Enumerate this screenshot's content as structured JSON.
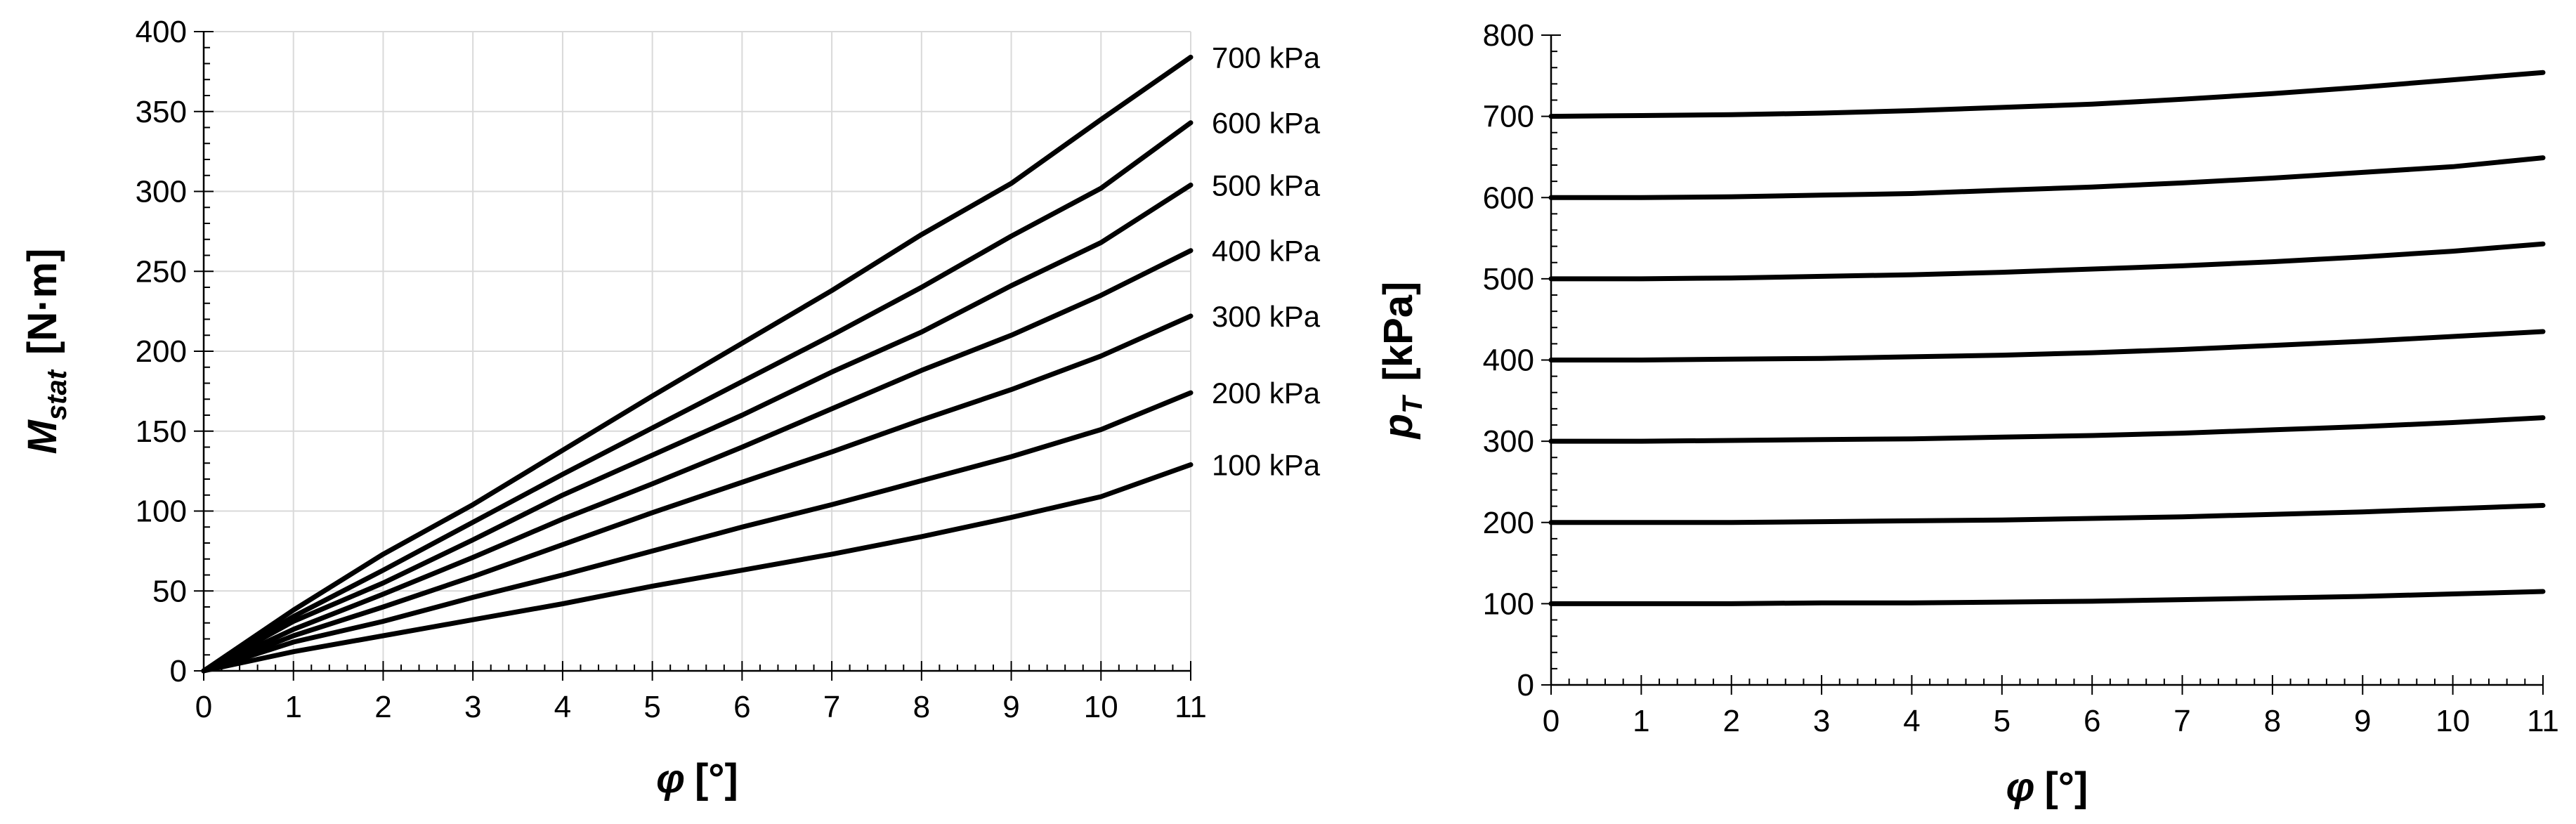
{
  "chart_data": [
    {
      "type": "line",
      "xlabel": "φ [°]",
      "ylabel": "M_stat [N·m]",
      "ylabel_main": "M",
      "ylabel_sub": "stat",
      "ylabel_unit": "[N·m]",
      "xlabel_symbol": "φ",
      "xlabel_unit": "[°]",
      "xlim": [
        0,
        11
      ],
      "ylim": [
        0,
        400
      ],
      "xticks": [
        0,
        1,
        2,
        3,
        4,
        5,
        6,
        7,
        8,
        9,
        10,
        11
      ],
      "yticks": [
        0,
        50,
        100,
        150,
        200,
        250,
        300,
        350,
        400
      ],
      "grid": true,
      "legend": "end-of-line labels",
      "x": [
        0,
        1,
        2,
        3,
        4,
        5,
        6,
        7,
        8,
        9,
        10,
        11
      ],
      "series": [
        {
          "name": "700 kPa",
          "values": [
            0,
            38,
            73,
            104,
            138,
            172,
            205,
            238,
            273,
            305,
            345,
            384
          ]
        },
        {
          "name": "600 kPa",
          "values": [
            0,
            34,
            63,
            93,
            123,
            152,
            181,
            210,
            240,
            272,
            302,
            343
          ]
        },
        {
          "name": "500 kPa",
          "values": [
            0,
            31,
            55,
            82,
            110,
            135,
            160,
            187,
            212,
            241,
            268,
            304
          ]
        },
        {
          "name": "400 kPa",
          "values": [
            0,
            26,
            48,
            71,
            95,
            117,
            140,
            164,
            188,
            210,
            235,
            263
          ]
        },
        {
          "name": "300 kPa",
          "values": [
            0,
            22,
            40,
            59,
            79,
            99,
            118,
            137,
            157,
            176,
            197,
            222
          ]
        },
        {
          "name": "200 kPa",
          "values": [
            0,
            18,
            31,
            46,
            60,
            75,
            90,
            104,
            119,
            134,
            151,
            174
          ]
        },
        {
          "name": "100 kPa",
          "values": [
            0,
            12,
            22,
            32,
            42,
            53,
            63,
            73,
            84,
            96,
            109,
            129
          ]
        }
      ]
    },
    {
      "type": "line",
      "xlabel": "φ [°]",
      "ylabel": "p_T [kPa]",
      "ylabel_main": "p",
      "ylabel_sub": "T",
      "ylabel_unit": "[kPa]",
      "xlabel_symbol": "φ",
      "xlabel_unit": "[°]",
      "xlim": [
        0,
        11
      ],
      "ylim": [
        0,
        800
      ],
      "xticks": [
        0,
        1,
        2,
        3,
        4,
        5,
        6,
        7,
        8,
        9,
        10,
        11
      ],
      "yticks": [
        0,
        100,
        200,
        300,
        400,
        500,
        600,
        700,
        800
      ],
      "grid": false,
      "x": [
        0,
        1,
        2,
        3,
        4,
        5,
        6,
        7,
        8,
        9,
        10,
        11
      ],
      "series": [
        {
          "values": [
            700,
            701,
            702,
            704,
            707,
            711,
            715,
            721,
            728,
            736,
            745,
            754
          ]
        },
        {
          "values": [
            600,
            600,
            601,
            603,
            605,
            609,
            613,
            618,
            624,
            631,
            638,
            649
          ]
        },
        {
          "values": [
            500,
            500,
            501,
            503,
            505,
            508,
            512,
            516,
            521,
            527,
            534,
            543
          ]
        },
        {
          "values": [
            400,
            400,
            401,
            402,
            404,
            406,
            409,
            413,
            418,
            423,
            429,
            435
          ]
        },
        {
          "values": [
            300,
            300,
            301,
            302,
            303,
            305,
            307,
            310,
            314,
            318,
            323,
            329
          ]
        },
        {
          "values": [
            200,
            200,
            200,
            201,
            202,
            203,
            205,
            207,
            210,
            213,
            217,
            221
          ]
        },
        {
          "values": [
            100,
            100,
            100,
            101,
            101,
            102,
            103,
            105,
            107,
            109,
            112,
            115
          ]
        }
      ]
    }
  ]
}
